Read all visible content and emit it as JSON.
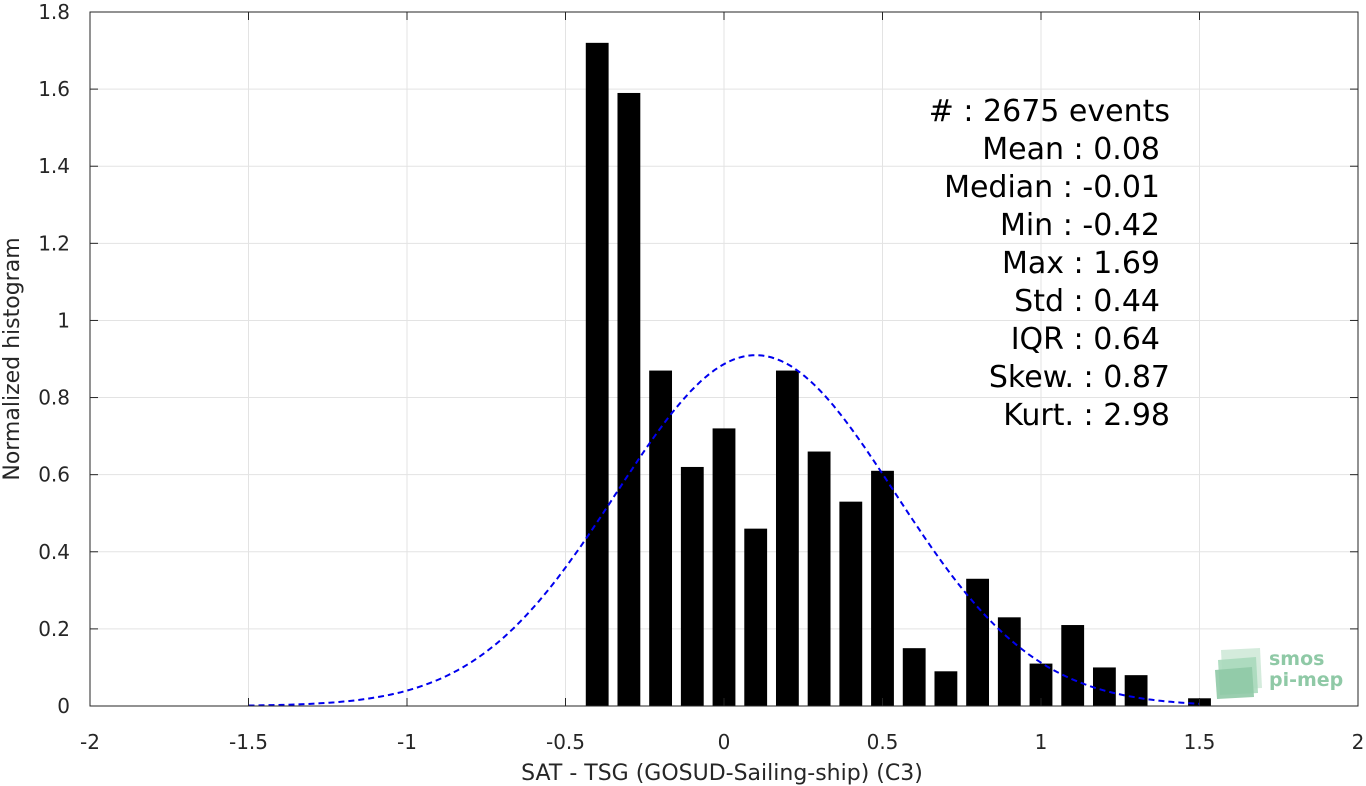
{
  "chart_data": {
    "type": "bar",
    "xlabel": "SAT - TSG (GOSUD-Sailing-ship) (C3)",
    "ylabel": "Normalized histogram",
    "xlim": [
      -2,
      2
    ],
    "ylim": [
      0,
      1.8
    ],
    "xticks": [
      -2,
      -1.5,
      -1,
      -0.5,
      0,
      0.5,
      1,
      1.5,
      2
    ],
    "xtick_labels": [
      "-2",
      "-1.5",
      "-1",
      "-0.5",
      "0",
      "0.5",
      "1",
      "1.5",
      "2"
    ],
    "yticks": [
      0,
      0.2,
      0.4,
      0.6,
      0.8,
      1,
      1.2,
      1.4,
      1.6,
      1.8
    ],
    "ytick_labels": [
      "0",
      "0.2",
      "0.4",
      "0.6",
      "0.8",
      "1",
      "1.2",
      "1.4",
      "1.6",
      "1.8"
    ],
    "grid": true,
    "bar_color": "#000000",
    "bin_width": 0.1,
    "bins": [
      {
        "x": -0.4,
        "y": 1.72
      },
      {
        "x": -0.3,
        "y": 1.59
      },
      {
        "x": -0.2,
        "y": 0.87
      },
      {
        "x": -0.1,
        "y": 0.62
      },
      {
        "x": 0.0,
        "y": 0.72
      },
      {
        "x": 0.1,
        "y": 0.46
      },
      {
        "x": 0.2,
        "y": 0.87
      },
      {
        "x": 0.3,
        "y": 0.66
      },
      {
        "x": 0.4,
        "y": 0.53
      },
      {
        "x": 0.5,
        "y": 0.61
      },
      {
        "x": 0.6,
        "y": 0.15
      },
      {
        "x": 0.7,
        "y": 0.09
      },
      {
        "x": 0.8,
        "y": 0.33
      },
      {
        "x": 0.9,
        "y": 0.23
      },
      {
        "x": 1.0,
        "y": 0.11
      },
      {
        "x": 1.1,
        "y": 0.21
      },
      {
        "x": 1.2,
        "y": 0.1
      },
      {
        "x": 1.3,
        "y": 0.08
      },
      {
        "x": 1.5,
        "y": 0.02
      }
    ],
    "fit_curve": {
      "type": "gaussian",
      "mean": 0.1,
      "peak": 0.91,
      "std": 0.44,
      "x_range": [
        -1.5,
        1.5
      ],
      "color": "#0000ee",
      "style": "dashed"
    },
    "stats": [
      "#  : 2675 events",
      "Mean : 0.08",
      "Median : -0.01",
      "Min : -0.42",
      "Max : 1.69",
      "Std : 0.44",
      "IQR : 0.64",
      "Skew. : 0.87",
      "Kurt. : 2.98"
    ]
  },
  "logo": {
    "line1": "smos",
    "line2": "pi-mep",
    "color": "#8fc9a6"
  }
}
